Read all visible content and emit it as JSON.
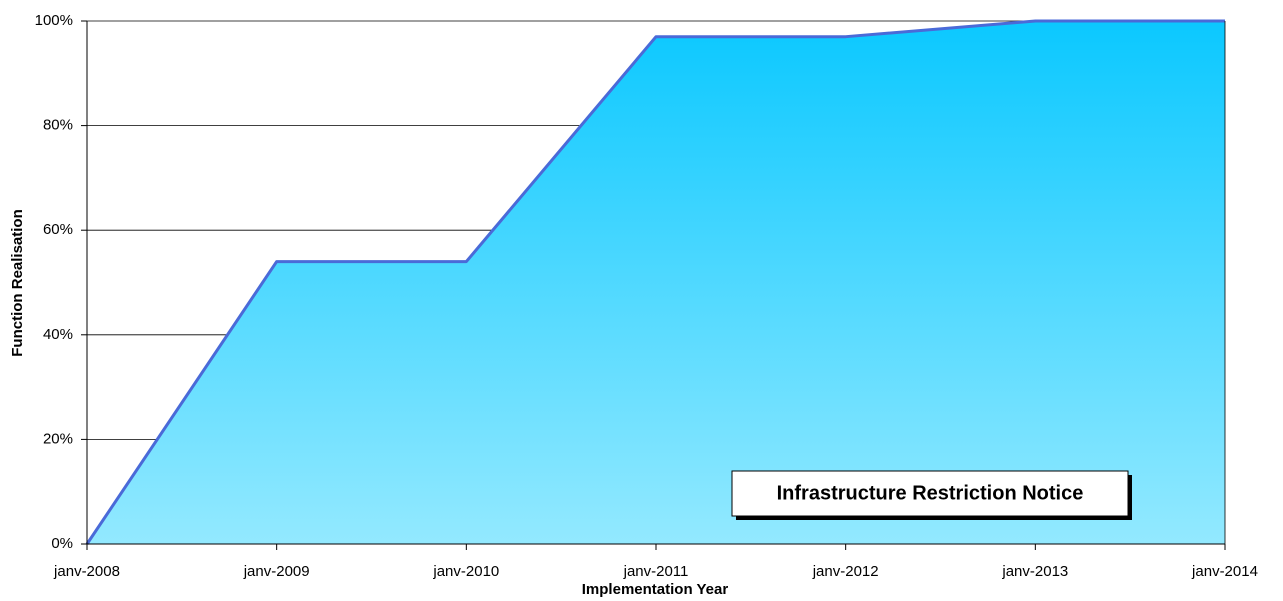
{
  "chart_data": {
    "type": "area",
    "x_label": "Implementation Year",
    "y_label": "Function Realisation",
    "categories": [
      "janv-2008",
      "janv-2009",
      "janv-2010",
      "janv-2011",
      "janv-2012",
      "janv-2013",
      "janv-2014"
    ],
    "series": [
      {
        "name": null,
        "color": "#4a6ad8",
        "fill_gradient": [
          "#0bc8ff",
          "#93e9ff"
        ],
        "values": [
          0,
          54,
          54,
          97,
          97,
          100,
          100
        ]
      }
    ],
    "ylim": [
      0,
      100
    ],
    "yticks": [
      {
        "value": 0,
        "label": "0%"
      },
      {
        "value": 20,
        "label": "20%"
      },
      {
        "value": 40,
        "label": "40%"
      },
      {
        "value": 60,
        "label": "60%"
      },
      {
        "value": 80,
        "label": "80%"
      },
      {
        "value": 100,
        "label": "100%"
      }
    ],
    "grid": true,
    "annotation": "Infrastructure Restriction Notice"
  }
}
